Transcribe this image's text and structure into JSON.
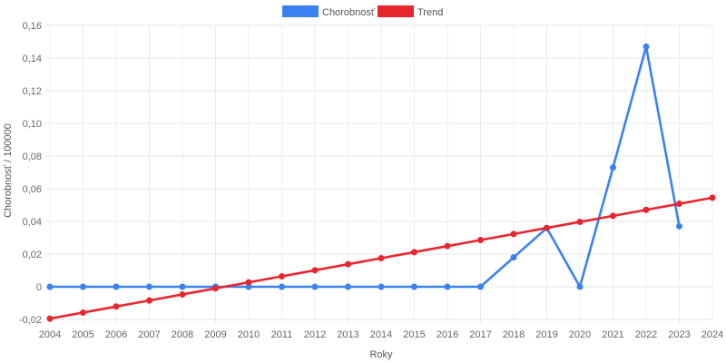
{
  "chart_data": {
    "type": "line",
    "xlabel": "Roky",
    "ylabel": "Chorobnosť / 100000",
    "ylim": [
      -0.02,
      0.16
    ],
    "ytick_step": 0.02,
    "x": [
      "2004",
      "2005",
      "2006",
      "2007",
      "2008",
      "2009",
      "2010",
      "2011",
      "2012",
      "2013",
      "2014",
      "2015",
      "2016",
      "2017",
      "2018",
      "2019",
      "2020",
      "2021",
      "2022",
      "2023",
      "2024"
    ],
    "yticks": [
      "-0,02",
      "0",
      "0,02",
      "0,04",
      "0,06",
      "0,08",
      "0,10",
      "0,12",
      "0,14",
      "0,16"
    ],
    "legend_position": "top-center",
    "grid": true,
    "series": [
      {
        "name": "Chorobnosť",
        "color": "#3b82f0",
        "values": [
          0,
          0,
          0,
          0,
          0,
          0,
          0,
          0,
          0,
          0,
          0,
          0,
          0,
          0,
          0.018,
          0.036,
          0,
          0.073,
          0.147,
          0.037,
          null
        ]
      },
      {
        "name": "Trend",
        "color": "#e8262d",
        "values": [
          -0.0195,
          -0.0158,
          -0.0121,
          -0.0084,
          -0.0047,
          -0.001,
          0.0027,
          0.0064,
          0.0101,
          0.0138,
          0.0175,
          0.0212,
          0.0249,
          0.0286,
          0.0323,
          0.036,
          0.0397,
          0.0434,
          0.0471,
          0.0508,
          0.0545
        ]
      }
    ]
  }
}
